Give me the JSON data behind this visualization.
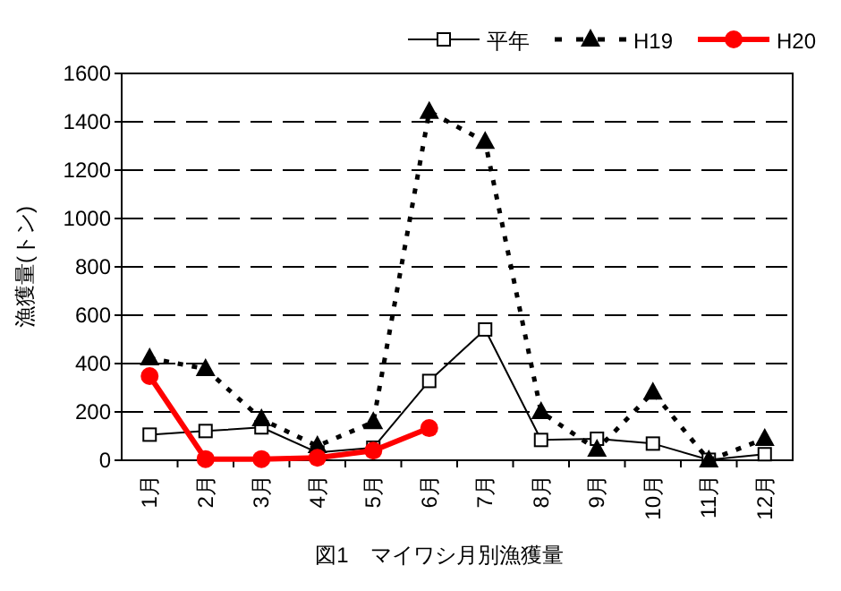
{
  "chart_data": {
    "type": "line",
    "title": "図1　マイワシ月別漁獲量",
    "ylabel": "漁獲量(トン)",
    "categories": [
      "1月",
      "2月",
      "3月",
      "4月",
      "5月",
      "6月",
      "7月",
      "8月",
      "9月",
      "10月",
      "11月",
      "12月"
    ],
    "series": [
      {
        "name": "平年",
        "color": "#000000",
        "marker": "square",
        "line_style": "solid",
        "values": [
          106,
          121,
          136,
          32,
          52,
          328,
          541,
          84,
          89,
          69,
          2,
          25
        ]
      },
      {
        "name": "H19",
        "color": "#000000",
        "marker": "triangle",
        "line_style": "dotted",
        "values": [
          422,
          378,
          170,
          59,
          158,
          1442,
          1318,
          200,
          44,
          281,
          0,
          89
        ]
      },
      {
        "name": "H20",
        "color": "#ff0000",
        "marker": "circle",
        "line_style": "solid",
        "values": [
          348,
          5,
          5,
          10,
          40,
          133,
          null,
          null,
          null,
          null,
          null,
          null
        ]
      }
    ],
    "ylim": [
      0,
      1600
    ],
    "yticks": [
      0,
      200,
      400,
      600,
      800,
      1000,
      1200,
      1400,
      1600
    ],
    "grid": "y",
    "legend": "top right"
  }
}
